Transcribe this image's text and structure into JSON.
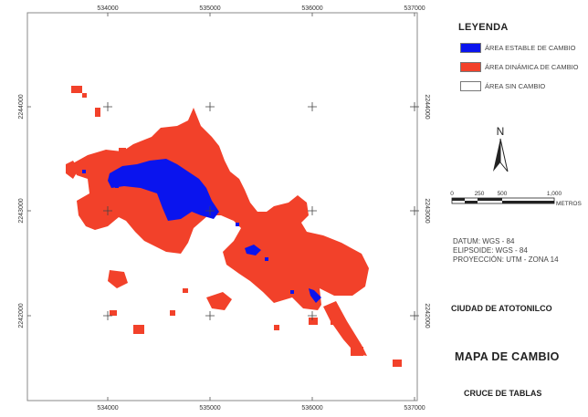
{
  "map": {
    "x_ticks": [
      "534000",
      "535000",
      "536000",
      "537000"
    ],
    "y_ticks": [
      "2244000",
      "2243000",
      "2242000"
    ],
    "grid_crosses": "on",
    "colors": {
      "stable": "#0a14ee",
      "dynamic": "#f2412a",
      "none": "#ffffff",
      "frame": "#8a8a8a"
    }
  },
  "legend": {
    "title": "LEYENDA",
    "items": [
      {
        "label": "ÁREA ESTABLE DE CAMBIO",
        "color": "#0a14ee"
      },
      {
        "label": "ÁREA DINÁMICA DE CAMBIO",
        "color": "#f2412a"
      },
      {
        "label": "ÁREA SIN CAMBIO",
        "color": "#ffffff"
      }
    ]
  },
  "north_arrow": {
    "label": "N",
    "icon": "north-arrow-icon"
  },
  "scale_bar": {
    "labels": [
      "0",
      "250",
      "500",
      "1,000"
    ],
    "unit": "METROS"
  },
  "datum": {
    "lines": [
      "DATUM: WGS - 84",
      "ELIPSOIDE: WGS - 84",
      "PROYECCIÓN: UTM - ZONA 14"
    ]
  },
  "city": "CIUDAD DE ATOTONILCO",
  "title": "MAPA DE CAMBIO",
  "subtitle": "CRUCE DE TABLAS"
}
